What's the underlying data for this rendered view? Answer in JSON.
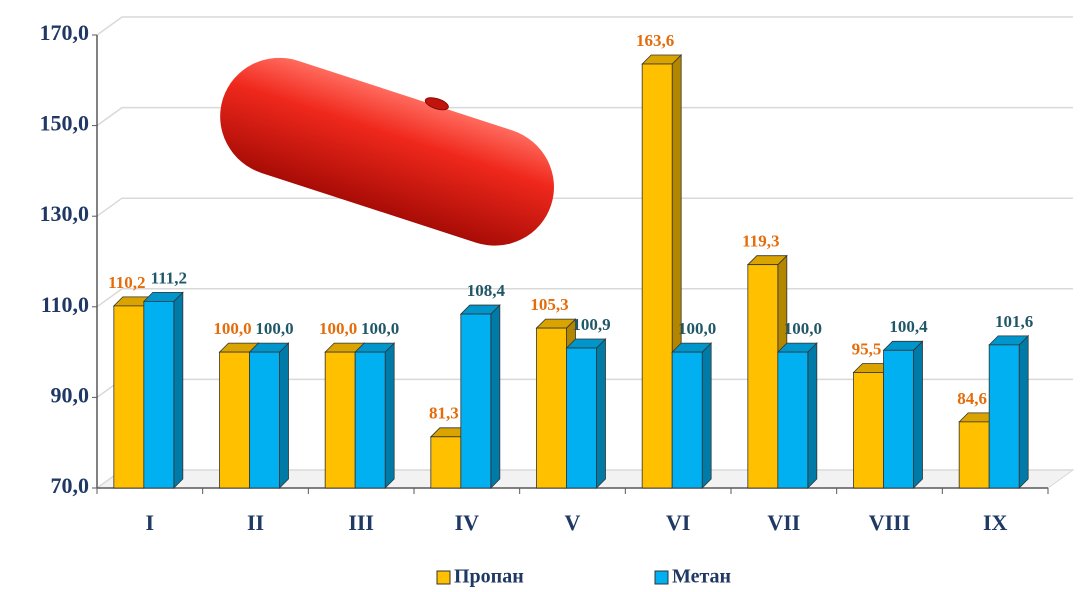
{
  "chart_data": {
    "type": "bar3d",
    "categories": [
      "I",
      "II",
      "III",
      "IV",
      "V",
      "VI",
      "VII",
      "VIII",
      "IX"
    ],
    "series": [
      {
        "name": "Пропан",
        "color": "#ffc000",
        "label_color": "#e46c0a",
        "values": [
          110.2,
          100.0,
          100.0,
          81.3,
          105.3,
          163.6,
          119.3,
          95.5,
          84.6
        ],
        "value_labels": [
          "110,2",
          "100,0",
          "100,0",
          "81,3",
          "105,3",
          "163,6",
          "119,3",
          "95,5",
          "84,6"
        ]
      },
      {
        "name": "Метан",
        "color": "#00b0f0",
        "label_color": "#215868",
        "values": [
          111.2,
          100.0,
          100.0,
          108.4,
          100.9,
          100.0,
          100.0,
          100.4,
          101.6
        ],
        "value_labels": [
          "111,2",
          "100,0",
          "100,0",
          "108,4",
          "100,9",
          "100,0",
          "100,0",
          "100,4",
          "101,6"
        ]
      }
    ],
    "ylim": [
      70,
      170
    ],
    "yticks": [
      {
        "value": 70,
        "label": "70,0"
      },
      {
        "value": 90,
        "label": "90,0"
      },
      {
        "value": 110,
        "label": "110,0"
      },
      {
        "value": 130,
        "label": "130,0"
      },
      {
        "value": 150,
        "label": "150,0"
      },
      {
        "value": 170,
        "label": "170,0"
      }
    ],
    "grid": true,
    "legend": "bottom"
  }
}
